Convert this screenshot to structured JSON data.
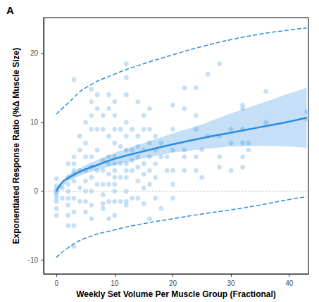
{
  "chart_data": {
    "type": "scatter",
    "title": "A",
    "x_label": "Weekly Set Volume Per Muscle Group (Fractional)",
    "y_label": "Exponentiated Response Ratio (%Δ Muscle Size)",
    "xlim": [
      -2.2,
      43.3
    ],
    "ylim": [
      -12,
      25.2
    ],
    "xticks": [
      0,
      10,
      20,
      30,
      40
    ],
    "yticks": [
      -10,
      0,
      10,
      20
    ],
    "grid": false,
    "series": [
      {
        "type": "scatter",
        "marker": "circle",
        "color": "#90c2ee",
        "values": [
          [
            0,
            1.8
          ],
          [
            0,
            0.8
          ],
          [
            0,
            0
          ],
          [
            0,
            -0.5
          ],
          [
            0,
            -1
          ],
          [
            0,
            -1.5
          ],
          [
            0,
            -2.5
          ],
          [
            0,
            -3.5
          ],
          [
            0,
            0.3
          ],
          [
            0,
            -0.2
          ],
          [
            1,
            0.5
          ],
          [
            1,
            -1
          ],
          [
            2,
            2
          ],
          [
            2,
            4
          ],
          [
            2,
            -1
          ],
          [
            2,
            -2
          ],
          [
            2,
            -3.5
          ],
          [
            2,
            -5
          ],
          [
            2,
            0
          ],
          [
            2,
            1
          ],
          [
            3,
            16.2
          ],
          [
            3,
            5
          ],
          [
            3,
            4
          ],
          [
            3,
            3
          ],
          [
            3,
            1.5
          ],
          [
            3,
            -1
          ],
          [
            3,
            -3
          ],
          [
            3,
            -5
          ],
          [
            3,
            -8
          ],
          [
            3,
            2.5
          ],
          [
            4,
            3
          ],
          [
            4,
            0.5
          ],
          [
            4,
            -1.5
          ],
          [
            4,
            8
          ],
          [
            4,
            6
          ],
          [
            5,
            10
          ],
          [
            5,
            7
          ],
          [
            5,
            5
          ],
          [
            5,
            3
          ],
          [
            5,
            1.5
          ],
          [
            5,
            0
          ],
          [
            5,
            -1.5
          ],
          [
            5,
            -3
          ],
          [
            6,
            14.8
          ],
          [
            6,
            13
          ],
          [
            6,
            11
          ],
          [
            6,
            9
          ],
          [
            6,
            5
          ],
          [
            6,
            3.5
          ],
          [
            6,
            2
          ],
          [
            6,
            0
          ],
          [
            6,
            -2
          ],
          [
            6,
            -4
          ],
          [
            7,
            14
          ],
          [
            7,
            12
          ],
          [
            7,
            9
          ],
          [
            7,
            6
          ],
          [
            7,
            3
          ],
          [
            7,
            1
          ],
          [
            8,
            11
          ],
          [
            8,
            9
          ],
          [
            8,
            4.5
          ],
          [
            8,
            3
          ],
          [
            8,
            1
          ],
          [
            8,
            -0.5
          ],
          [
            8,
            -1.8
          ],
          [
            8,
            -2.5
          ],
          [
            9,
            14
          ],
          [
            9,
            12
          ],
          [
            9,
            8
          ],
          [
            9,
            5
          ],
          [
            9,
            4
          ],
          [
            9,
            2.5
          ],
          [
            9,
            1
          ],
          [
            9,
            -1.5
          ],
          [
            9,
            -4
          ],
          [
            10,
            13
          ],
          [
            10,
            11
          ],
          [
            10,
            9
          ],
          [
            10,
            7
          ],
          [
            10,
            5
          ],
          [
            10,
            4
          ],
          [
            10,
            3
          ],
          [
            10,
            2
          ],
          [
            10,
            1
          ],
          [
            10,
            0
          ],
          [
            10,
            -1.5
          ],
          [
            10,
            -3.5
          ],
          [
            11,
            9
          ],
          [
            11,
            6.5
          ],
          [
            11,
            4
          ],
          [
            11,
            2
          ],
          [
            11,
            -1.5
          ],
          [
            12,
            18.5
          ],
          [
            12,
            16.5
          ],
          [
            12,
            14
          ],
          [
            12,
            10
          ],
          [
            12,
            8
          ],
          [
            12,
            6
          ],
          [
            12,
            4
          ],
          [
            12,
            3
          ],
          [
            12,
            2
          ],
          [
            12,
            0
          ],
          [
            12,
            -1.5
          ],
          [
            12,
            -2
          ],
          [
            13,
            9
          ],
          [
            13,
            6
          ],
          [
            13,
            4.5
          ],
          [
            13,
            3
          ],
          [
            13,
            -1
          ],
          [
            14,
            13
          ],
          [
            14,
            8
          ],
          [
            14,
            6.5
          ],
          [
            14,
            5
          ],
          [
            14,
            3.5
          ],
          [
            14,
            1.5
          ],
          [
            14,
            -1
          ],
          [
            15,
            11
          ],
          [
            15,
            9
          ],
          [
            15,
            6
          ],
          [
            15,
            4
          ],
          [
            15,
            2.5
          ],
          [
            15,
            0.5
          ],
          [
            15,
            -1.8
          ],
          [
            16,
            12
          ],
          [
            16,
            9
          ],
          [
            16,
            7
          ],
          [
            16,
            5
          ],
          [
            16,
            3
          ],
          [
            16,
            1
          ],
          [
            16,
            -4
          ],
          [
            17,
            8
          ],
          [
            17,
            6
          ],
          [
            17,
            4
          ],
          [
            17,
            2
          ],
          [
            17,
            -1
          ],
          [
            18,
            7
          ],
          [
            18,
            5
          ],
          [
            18,
            -2.5
          ],
          [
            19,
            5
          ],
          [
            19,
            3
          ],
          [
            20,
            12.5
          ],
          [
            20,
            9
          ],
          [
            20,
            6
          ],
          [
            20,
            3
          ],
          [
            20,
            1
          ],
          [
            20,
            -1
          ],
          [
            22,
            15
          ],
          [
            22,
            12
          ],
          [
            22,
            6
          ],
          [
            22,
            5
          ],
          [
            22,
            3
          ],
          [
            24,
            15
          ],
          [
            24,
            11
          ],
          [
            24,
            9
          ],
          [
            24,
            5
          ],
          [
            24,
            3
          ],
          [
            25,
            6
          ],
          [
            25,
            2
          ],
          [
            26,
            17
          ],
          [
            26,
            8
          ],
          [
            28,
            18.5
          ],
          [
            28,
            8
          ],
          [
            28,
            5
          ],
          [
            28,
            3.5
          ],
          [
            30,
            9
          ],
          [
            30,
            7
          ],
          [
            30,
            3
          ],
          [
            32,
            12
          ],
          [
            32,
            9
          ],
          [
            32,
            7
          ],
          [
            32,
            5
          ],
          [
            32,
            3.5
          ],
          [
            32,
            12.5
          ],
          [
            33,
            7
          ],
          [
            33,
            6
          ],
          [
            36,
            14.5
          ],
          [
            36,
            10
          ],
          [
            43,
            11.5
          ],
          [
            43,
            10.5
          ]
        ]
      },
      {
        "type": "band",
        "color": "#2b8ce0",
        "x": [
          0,
          2,
          5,
          10,
          15,
          20,
          25,
          30,
          35,
          40,
          43
        ],
        "lower": [
          -0.2,
          1.5,
          2.6,
          3.8,
          4.8,
          5.6,
          6.1,
          6.5,
          6.6,
          6.5,
          6.3
        ],
        "upper": [
          0.5,
          2.4,
          3.8,
          5.6,
          7.0,
          8.4,
          9.7,
          11.3,
          12.7,
          14.2,
          15.0
        ]
      },
      {
        "type": "line",
        "marker": "none",
        "line_style": "solid",
        "color": "#2b8ce0",
        "x": [
          0,
          1,
          2,
          3,
          5,
          7,
          10,
          15,
          20,
          25,
          30,
          35,
          40,
          43
        ],
        "values": [
          0,
          1.3,
          1.9,
          2.4,
          3.2,
          3.8,
          4.7,
          5.8,
          6.8,
          7.7,
          8.5,
          9.3,
          10.1,
          10.7
        ]
      },
      {
        "type": "line",
        "marker": "none",
        "line_style": "dashed",
        "color": "#2b8ce0",
        "x": [
          0,
          2,
          5,
          10,
          15,
          20,
          25,
          30,
          35,
          40,
          43
        ],
        "values": [
          11.2,
          12.8,
          15.0,
          17.0,
          18.5,
          19.8,
          21.0,
          22.0,
          22.8,
          23.4,
          23.7
        ]
      },
      {
        "type": "line",
        "marker": "none",
        "line_style": "dashed",
        "color": "#2b8ce0",
        "x": [
          0,
          2,
          5,
          10,
          15,
          20,
          25,
          30,
          35,
          40,
          43
        ],
        "values": [
          -9.6,
          -8.2,
          -6.8,
          -5.6,
          -4.7,
          -4.0,
          -3.3,
          -2.7,
          -2.0,
          -1.2,
          -0.8
        ]
      },
      {
        "type": "hline",
        "line_style": "dotted",
        "color": "#bbbbbb",
        "value": 0
      }
    ]
  }
}
